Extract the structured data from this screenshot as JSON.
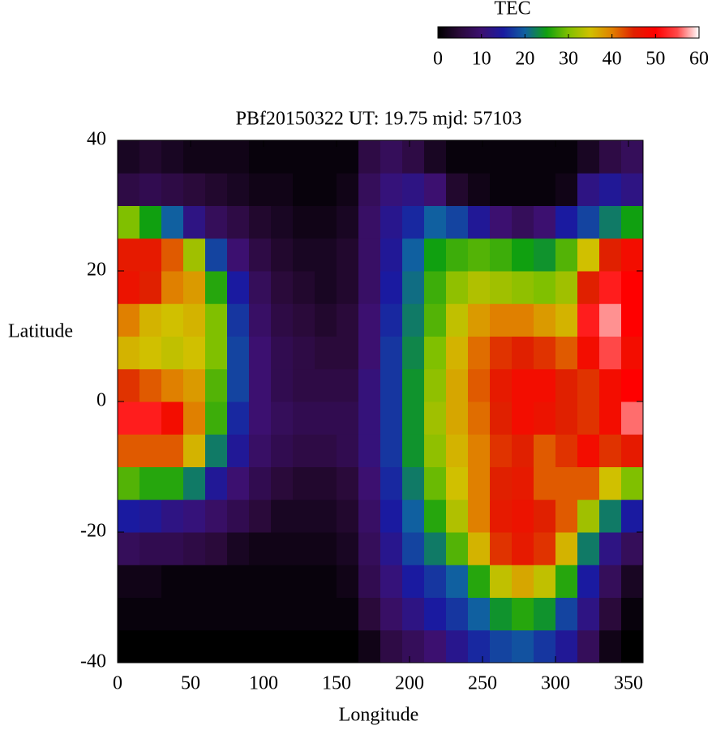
{
  "chart_data": {
    "type": "heatmap",
    "title": "PBf20150322  UT: 19.75  mjd: 57103",
    "x_label": "Longitude",
    "y_label": "Latitude",
    "colorbar_title": "TEC",
    "xlim": [
      0,
      360
    ],
    "xticks": [
      0,
      50,
      100,
      150,
      200,
      250,
      300,
      350
    ],
    "ylim": [
      -40,
      40
    ],
    "yticks": [
      -40,
      -20,
      0,
      20,
      40
    ],
    "zlim": [
      0,
      60
    ],
    "zticks": [
      0,
      10,
      20,
      30,
      40,
      50,
      60
    ],
    "colorscale": [
      "#000000",
      "#2a0a3a",
      "#3c1070",
      "#1a1aa0",
      "#1060a0",
      "#10a010",
      "#80c000",
      "#d0c000",
      "#e08000",
      "#e02000",
      "#ff0000",
      "#ff4848",
      "#ffffff"
    ],
    "x": [
      7.5,
      22.5,
      37.5,
      52.5,
      67.5,
      82.5,
      97.5,
      112.5,
      127.5,
      142.5,
      157.5,
      172.5,
      187.5,
      202.5,
      217.5,
      232.5,
      247.5,
      262.5,
      277.5,
      292.5,
      307.5,
      322.5,
      337.5,
      352.5
    ],
    "y": [
      -37.5,
      -32.5,
      -27.5,
      -22.5,
      -17.5,
      -12.5,
      -7.5,
      -2.5,
      2.5,
      7.5,
      12.5,
      17.5,
      22.5,
      27.5,
      32.5,
      37.5
    ],
    "z": [
      [
        0,
        0,
        0,
        0,
        0,
        0,
        0,
        0,
        0,
        0,
        0,
        2,
        6,
        8,
        10,
        13,
        16,
        18,
        19,
        17,
        14,
        8,
        2,
        0
      ],
      [
        1,
        1,
        1,
        1,
        1,
        1,
        1,
        1,
        1,
        1,
        1,
        5,
        9,
        12,
        15,
        17,
        20,
        24,
        26,
        24,
        18,
        12,
        5,
        1
      ],
      [
        2,
        2,
        1,
        1,
        1,
        1,
        1,
        1,
        1,
        1,
        2,
        7,
        11,
        15,
        17,
        20,
        26,
        34,
        37,
        34,
        26,
        15,
        8,
        3
      ],
      [
        8,
        7,
        7,
        6,
        5,
        3,
        2,
        2,
        2,
        2,
        3,
        8,
        13,
        18,
        22,
        28,
        36,
        44,
        46,
        44,
        36,
        22,
        12,
        8
      ],
      [
        15,
        14,
        12,
        11,
        9,
        7,
        5,
        3,
        3,
        3,
        4,
        9,
        15,
        20,
        26,
        33,
        40,
        46,
        47,
        45,
        42,
        32,
        22,
        15
      ],
      [
        28,
        26,
        26,
        22,
        14,
        10,
        7,
        5,
        4,
        4,
        5,
        10,
        16,
        22,
        29,
        35,
        40,
        45,
        46,
        42,
        42,
        42,
        35,
        30
      ],
      [
        42,
        42,
        42,
        36,
        22,
        14,
        9,
        7,
        6,
        6,
        7,
        11,
        17,
        24,
        31,
        36,
        40,
        44,
        45,
        42,
        44,
        48,
        44,
        46
      ],
      [
        52,
        52,
        48,
        40,
        27,
        16,
        10,
        8,
        7,
        7,
        7,
        11,
        17,
        24,
        32,
        37,
        41,
        45,
        48,
        47,
        45,
        44,
        48,
        56
      ],
      [
        44,
        42,
        40,
        38,
        28,
        18,
        10,
        7,
        6,
        6,
        6,
        11,
        17,
        24,
        31,
        37,
        42,
        46,
        48,
        48,
        45,
        44,
        48,
        50
      ],
      [
        36,
        35,
        34,
        35,
        30,
        18,
        10,
        7,
        6,
        5,
        5,
        10,
        17,
        23,
        30,
        36,
        41,
        44,
        45,
        44,
        42,
        48,
        55,
        48
      ],
      [
        40,
        36,
        35,
        36,
        30,
        17,
        9,
        6,
        5,
        4,
        5,
        10,
        16,
        22,
        28,
        34,
        38,
        40,
        40,
        38,
        36,
        52,
        57,
        50
      ],
      [
        47,
        45,
        40,
        38,
        26,
        15,
        8,
        5,
        4,
        3,
        4,
        9,
        15,
        21,
        27,
        31,
        33,
        32,
        31,
        30,
        32,
        45,
        52,
        50
      ],
      [
        46,
        46,
        42,
        32,
        18,
        10,
        6,
        4,
        3,
        3,
        4,
        9,
        14,
        20,
        25,
        27,
        28,
        27,
        25,
        24,
        28,
        35,
        45,
        48
      ],
      [
        30,
        25,
        20,
        12,
        8,
        6,
        4,
        3,
        2,
        2,
        3,
        9,
        13,
        16,
        20,
        18,
        14,
        10,
        8,
        10,
        15,
        18,
        22,
        25
      ],
      [
        6,
        7,
        6,
        5,
        4,
        3,
        2,
        2,
        1,
        1,
        2,
        8,
        11,
        12,
        10,
        4,
        2,
        1,
        1,
        1,
        2,
        12,
        14,
        12
      ],
      [
        3,
        4,
        3,
        2,
        2,
        2,
        1,
        1,
        1,
        1,
        1,
        6,
        8,
        6,
        3,
        1,
        1,
        1,
        1,
        1,
        1,
        3,
        6,
        8
      ]
    ]
  }
}
